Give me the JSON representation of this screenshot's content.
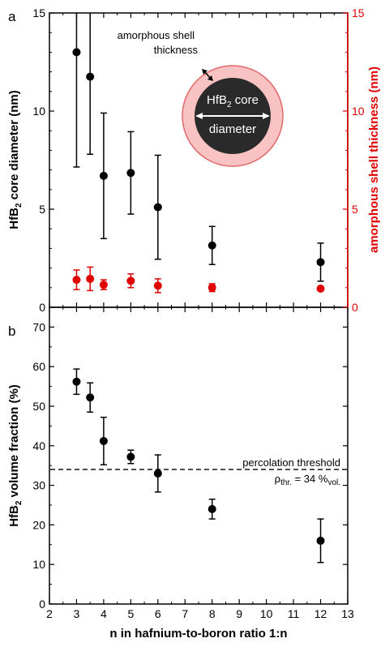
{
  "chart_data": [
    {
      "panel": "a",
      "type": "scatter",
      "panel_label": "a",
      "xlim": [
        2,
        13
      ],
      "ylim": [
        0,
        15
      ],
      "y2lim": [
        0,
        15
      ],
      "x_ticks": [
        2,
        3,
        4,
        5,
        6,
        7,
        8,
        9,
        10,
        11,
        12,
        13
      ],
      "y_ticks": [
        0,
        5,
        10,
        15
      ],
      "y2_ticks": [
        0,
        5,
        10,
        15
      ],
      "ylabel": {
        "pre": "HfB",
        "sub": "2",
        "post": " core diameter (nm)"
      },
      "y2label": "amorphous shell thickness (nm)",
      "series": [
        {
          "color": "#000000",
          "axis": "left",
          "x": [
            3,
            3.5,
            4,
            5,
            6,
            8,
            12
          ],
          "y": [
            13.0,
            11.75,
            6.7,
            6.85,
            5.1,
            3.15,
            2.3
          ],
          "err": [
            5.85,
            3.95,
            3.2,
            2.1,
            2.65,
            0.97,
            0.97
          ]
        },
        {
          "color": "#e00000",
          "axis": "right",
          "x": [
            3,
            3.5,
            4,
            5,
            6,
            8,
            12
          ],
          "y": [
            1.4,
            1.45,
            1.15,
            1.35,
            1.1,
            1.0,
            0.95
          ],
          "err": [
            0.5,
            0.6,
            0.25,
            0.35,
            0.35,
            0.2,
            0.1
          ]
        }
      ],
      "inset": {
        "shell_label_line1": "amorphous shell",
        "shell_label_line2": "thickness",
        "core_label_pre": "HfB",
        "core_label_sub": "2",
        "core_label_post": " core",
        "core_label_line2": "diameter",
        "shell_color": "#f7b5b5",
        "core_color": "#2a2a2a"
      }
    },
    {
      "panel": "b",
      "type": "scatter",
      "panel_label": "b",
      "xlim": [
        2,
        13
      ],
      "ylim": [
        0,
        75
      ],
      "x_ticks": [
        2,
        3,
        4,
        5,
        6,
        7,
        8,
        9,
        10,
        11,
        12,
        13
      ],
      "y_ticks": [
        0,
        10,
        20,
        30,
        40,
        50,
        60,
        70
      ],
      "xlabel": "n in hafnium-to-boron ratio 1:n",
      "ylabel": {
        "pre": "HfB",
        "sub": "2",
        "post": " volume fraction (%)"
      },
      "series": [
        {
          "color": "#000000",
          "x": [
            3,
            3.5,
            4,
            5,
            6,
            8,
            12
          ],
          "y": [
            56.2,
            52.2,
            41.2,
            37.2,
            33.0,
            24.0,
            16.0
          ],
          "err": [
            3.2,
            3.7,
            6.0,
            1.7,
            4.7,
            2.5,
            5.5
          ]
        }
      ],
      "threshold": {
        "value": 34,
        "label_line1": "percolation threshold",
        "rho": "ρ",
        "rho_sub": "thr.",
        "eq": " = 34 %",
        "unit_sub": "vol."
      }
    }
  ]
}
